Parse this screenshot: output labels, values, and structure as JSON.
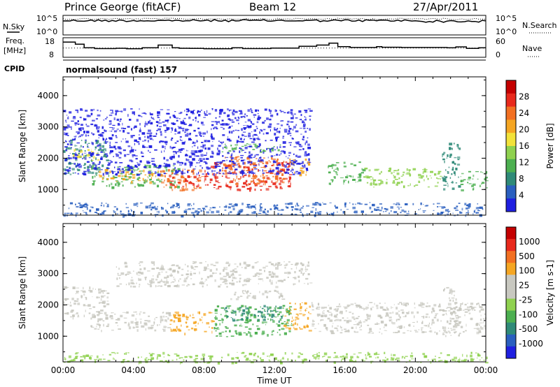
{
  "header": {
    "station": "Prince George (fitACF)",
    "beam": "Beam 12",
    "date": "27/Apr/2011"
  },
  "noise_panel": {
    "left_label": "N.Sky",
    "right_label": "N.Search",
    "ticks": [
      "10^5",
      "10^0"
    ],
    "right_ticks": [
      "10^5",
      "10^0"
    ]
  },
  "freq_panel": {
    "left_label_1": "Freq.",
    "left_label_2": "[MHz]",
    "left_ticks": [
      "18",
      "8"
    ],
    "right_label": "Nave",
    "right_ticks": [
      "60",
      "0"
    ],
    "freq_steps": [
      [
        0.0,
        16.5
      ],
      [
        0.7,
        15.2
      ],
      [
        1.2,
        12.8
      ],
      [
        1.8,
        12.3
      ],
      [
        3.0,
        12.5
      ],
      [
        3.6,
        12.2
      ],
      [
        4.5,
        12.8
      ],
      [
        5.4,
        14.6
      ],
      [
        6.2,
        12.8
      ],
      [
        6.6,
        12.5
      ],
      [
        7.2,
        12.4
      ],
      [
        8.0,
        12.2
      ],
      [
        9.6,
        12.8
      ],
      [
        10.2,
        12.3
      ],
      [
        11.8,
        12.6
      ],
      [
        13.4,
        13.8
      ],
      [
        14.4,
        14.6
      ],
      [
        15.1,
        15.8
      ],
      [
        15.6,
        13.6
      ],
      [
        16.3,
        13.0
      ],
      [
        17.8,
        13.6
      ],
      [
        18.1,
        13.2
      ],
      [
        19.2,
        13.0
      ],
      [
        21.8,
        12.8
      ],
      [
        22.3,
        13.4
      ],
      [
        22.9,
        12.4
      ],
      [
        23.6,
        12.8
      ],
      [
        24.0,
        12.8
      ]
    ],
    "nave_level": 28
  },
  "cpid": {
    "label": "CPID",
    "text": "normalsound (fast) 157"
  },
  "chart_data": [
    {
      "type": "heatmap",
      "name": "Power",
      "ylabel": "Slant Range [km]",
      "yticks": [
        1000,
        2000,
        3000,
        4000
      ],
      "ylim": [
        180,
        4600
      ],
      "xlim": [
        0,
        24
      ],
      "colorbar": {
        "label": "Power [dB]",
        "ticks": [
          "28",
          "24",
          "20",
          "16",
          "12",
          "8",
          "4"
        ],
        "colors": [
          "#1f1fe0",
          "#2a5fbf",
          "#2f8a78",
          "#4caf50",
          "#8fd14f",
          "#f2e23a",
          "#f5a623",
          "#f27022",
          "#e8291c",
          "#c40000"
        ]
      },
      "regions": [
        {
          "x0": 0.0,
          "x1": 2.5,
          "y0": 1500,
          "y1": 2600,
          "color": "#2f8a78"
        },
        {
          "x0": 0.5,
          "x1": 2.0,
          "y0": 1900,
          "y1": 2300,
          "color": "#f2e23a"
        },
        {
          "x0": 1.5,
          "x1": 6.5,
          "y0": 1100,
          "y1": 1800,
          "color": "#4caf50"
        },
        {
          "x0": 2.0,
          "x1": 5.5,
          "y0": 1250,
          "y1": 1650,
          "color": "#f5a623"
        },
        {
          "x0": 5.5,
          "x1": 8.0,
          "y0": 1000,
          "y1": 1700,
          "color": "#f27022"
        },
        {
          "x0": 6.0,
          "x1": 7.7,
          "y0": 1100,
          "y1": 1500,
          "color": "#e8291c"
        },
        {
          "x0": 8.0,
          "x1": 13.0,
          "y0": 1000,
          "y1": 1900,
          "color": "#e8291c"
        },
        {
          "x0": 9.0,
          "x1": 12.5,
          "y0": 1200,
          "y1": 2100,
          "color": "#f27022"
        },
        {
          "x0": 9.0,
          "x1": 12.5,
          "y0": 2200,
          "y1": 2500,
          "color": "#4caf50"
        },
        {
          "x0": 12.8,
          "x1": 14.0,
          "y0": 1500,
          "y1": 2000,
          "color": "#f5a623"
        },
        {
          "x0": 15.0,
          "x1": 17.0,
          "y0": 1200,
          "y1": 1900,
          "color": "#4caf50"
        },
        {
          "x0": 17.0,
          "x1": 21.5,
          "y0": 1100,
          "y1": 1700,
          "color": "#8fd14f"
        },
        {
          "x0": 21.5,
          "x1": 22.5,
          "y0": 1000,
          "y1": 2500,
          "color": "#2f8a78"
        },
        {
          "x0": 22.5,
          "x1": 24.0,
          "y0": 1000,
          "y1": 1600,
          "color": "#4caf50"
        },
        {
          "x0": 0.0,
          "x1": 24.0,
          "y0": 180,
          "y1": 600,
          "color": "#2a5fbf"
        },
        {
          "x0": 0.0,
          "x1": 14.0,
          "y0": 1500,
          "y1": 3600,
          "color": "#1f1fe0"
        }
      ]
    },
    {
      "type": "heatmap",
      "name": "Velocity",
      "ylabel": "Slant Range [km]",
      "yticks": [
        1000,
        2000,
        3000,
        4000
      ],
      "ylim": [
        180,
        4600
      ],
      "xlim": [
        0,
        24
      ],
      "xlabel": "Time UT",
      "xticks": [
        "00:00",
        "04:00",
        "08:00",
        "12:00",
        "16:00",
        "20:00",
        "00:00"
      ],
      "colorbar": {
        "label": "Velocity [m s-1]",
        "ticks": [
          "1000",
          "500",
          "100",
          "25",
          "-25",
          "-100",
          "-500",
          "-1000"
        ],
        "colors": [
          "#1f1fe0",
          "#2a5fbf",
          "#2f8a78",
          "#4caf50",
          "#8fd14f",
          "#c8c8c0",
          "#c8c8c0",
          "#f5a623",
          "#f27022",
          "#e8291c",
          "#c40000"
        ]
      },
      "regions": [
        {
          "x0": 0.0,
          "x1": 2.5,
          "y0": 1600,
          "y1": 2600,
          "color": "#c8c8c0"
        },
        {
          "x0": 1.5,
          "x1": 6.0,
          "y0": 1200,
          "y1": 1800,
          "color": "#c8c8c0"
        },
        {
          "x0": 6.0,
          "x1": 8.5,
          "y0": 1100,
          "y1": 1800,
          "color": "#f5a623"
        },
        {
          "x0": 8.5,
          "x1": 13.0,
          "y0": 1000,
          "y1": 2000,
          "color": "#4caf50"
        },
        {
          "x0": 9.0,
          "x1": 12.5,
          "y0": 1500,
          "y1": 2000,
          "color": "#2f8a78"
        },
        {
          "x0": 12.5,
          "x1": 14.0,
          "y0": 1200,
          "y1": 2100,
          "color": "#f5a623"
        },
        {
          "x0": 9.0,
          "x1": 12.5,
          "y0": 2200,
          "y1": 2500,
          "color": "#c8c8c0"
        },
        {
          "x0": 14.0,
          "x1": 24.0,
          "y0": 1100,
          "y1": 2100,
          "color": "#c8c8c0"
        },
        {
          "x0": 21.5,
          "x1": 22.5,
          "y0": 1000,
          "y1": 2600,
          "color": "#c8c8c0"
        },
        {
          "x0": 0.0,
          "x1": 24.0,
          "y0": 180,
          "y1": 500,
          "color": "#8fd14f"
        },
        {
          "x0": 3.0,
          "x1": 14.0,
          "y0": 2600,
          "y1": 3400,
          "color": "#c8c8c0"
        }
      ]
    }
  ]
}
